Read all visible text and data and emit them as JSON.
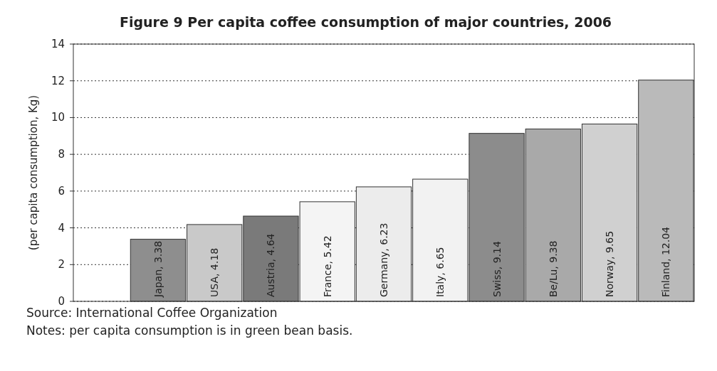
{
  "chart_data": {
    "type": "bar",
    "title": "Figure 9 Per capita coffee consumption of major countries, 2006",
    "ylabel": "(per capita consumption, Kg)",
    "categories": [
      null,
      "Japan, 3.38",
      "USA, 4.18",
      "Austria, 4.64",
      "France, 5.42",
      "Germany, 6.23",
      "Italy, 6.65",
      "Swiss, 9.14",
      "Be/Lu, 9.38",
      "Norway, 9.65",
      "Finland, 12.04"
    ],
    "values": [
      null,
      3.38,
      4.18,
      4.64,
      5.42,
      6.23,
      6.65,
      9.14,
      9.38,
      9.65,
      12.04
    ],
    "colors": [
      null,
      "#8e8e8e",
      "#c9c9c9",
      "#7a7a7a",
      "#f4f4f4",
      "#ececec",
      "#f2f2f2",
      "#8c8c8c",
      "#a9a9a9",
      "#d0d0d0",
      "#bababa"
    ],
    "ylim": [
      0,
      14
    ],
    "yticks": [
      0,
      2,
      4,
      6,
      8,
      10,
      12,
      14
    ],
    "grid": "y",
    "annotations": [
      "Source: International Coffee Organization",
      "Notes: per capita consumption is in green bean basis."
    ]
  }
}
